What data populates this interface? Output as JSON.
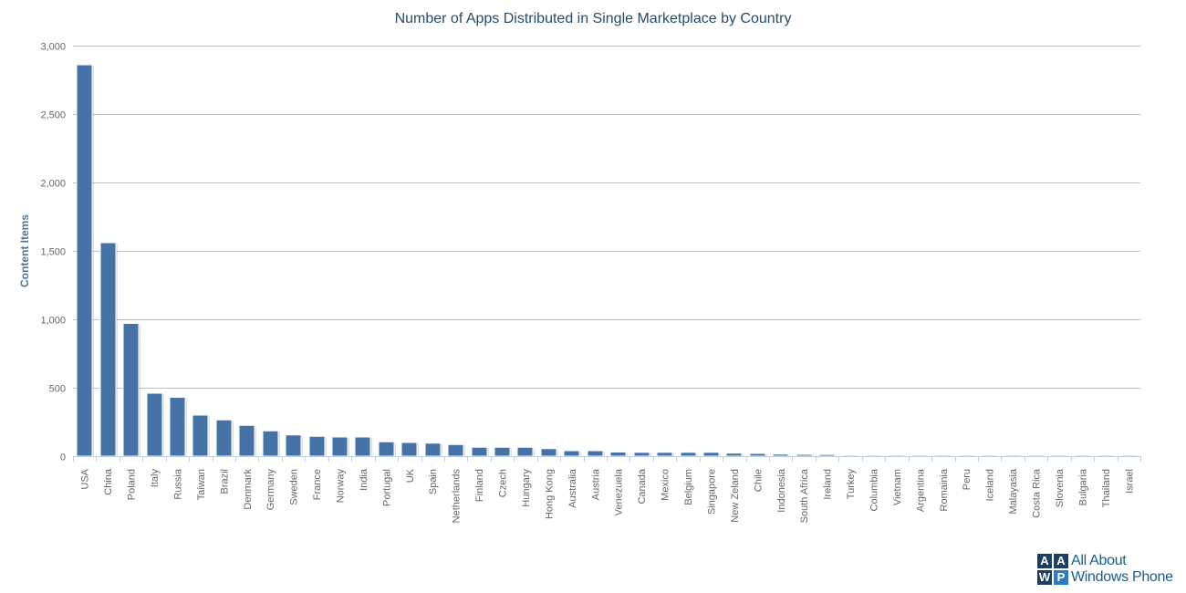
{
  "chart_data": {
    "type": "bar",
    "title": "Number of Apps Distributed in Single Marketplace by Country",
    "ylabel": "Content Items",
    "xlabel": "",
    "ylim": [
      0,
      3000
    ],
    "yticks": [
      0,
      500,
      1000,
      1500,
      2000,
      2500,
      3000
    ],
    "ytick_labels": [
      "0",
      "500",
      "1,000",
      "1,500",
      "2,000",
      "2,500",
      "3,000"
    ],
    "grid": true,
    "bar_color": "#4572a7",
    "categories": [
      "USA",
      "China",
      "Poland",
      "Italy",
      "Russia",
      "Taiwan",
      "Brazil",
      "Denmark",
      "Germany",
      "Sweden",
      "France",
      "Norway",
      "India",
      "Portugal",
      "UK",
      "Spain",
      "Netherlands",
      "Finland",
      "Czech",
      "Hungary",
      "Hong Kong",
      "Australia",
      "Austria",
      "Venezuela",
      "Canada",
      "Mexico",
      "Belgium",
      "Singapore",
      "New Zeland",
      "Chile",
      "Indonesia",
      "South Africa",
      "Ireland",
      "Turkey",
      "Columbia",
      "Vietnam",
      "Argentina",
      "Romainia",
      "Peru",
      "Iceland",
      "Malayasia",
      "Costa Rica",
      "Slovenia",
      "Bulgaria",
      "Thailand",
      "Israel"
    ],
    "values": [
      2860,
      1560,
      970,
      460,
      430,
      300,
      265,
      225,
      185,
      155,
      145,
      140,
      140,
      105,
      100,
      95,
      85,
      65,
      65,
      65,
      55,
      40,
      40,
      30,
      28,
      28,
      28,
      28,
      22,
      20,
      15,
      13,
      12,
      8,
      8,
      8,
      8,
      8,
      8,
      8,
      8,
      8,
      8,
      8,
      8,
      8
    ]
  },
  "logo": {
    "box_letters": [
      "A",
      "A",
      "W",
      "P"
    ],
    "line1": "All About",
    "line2": "Windows Phone",
    "colors": [
      "#1d3f63",
      "#1d3f63",
      "#1d3f63",
      "#2a7bbf"
    ]
  }
}
